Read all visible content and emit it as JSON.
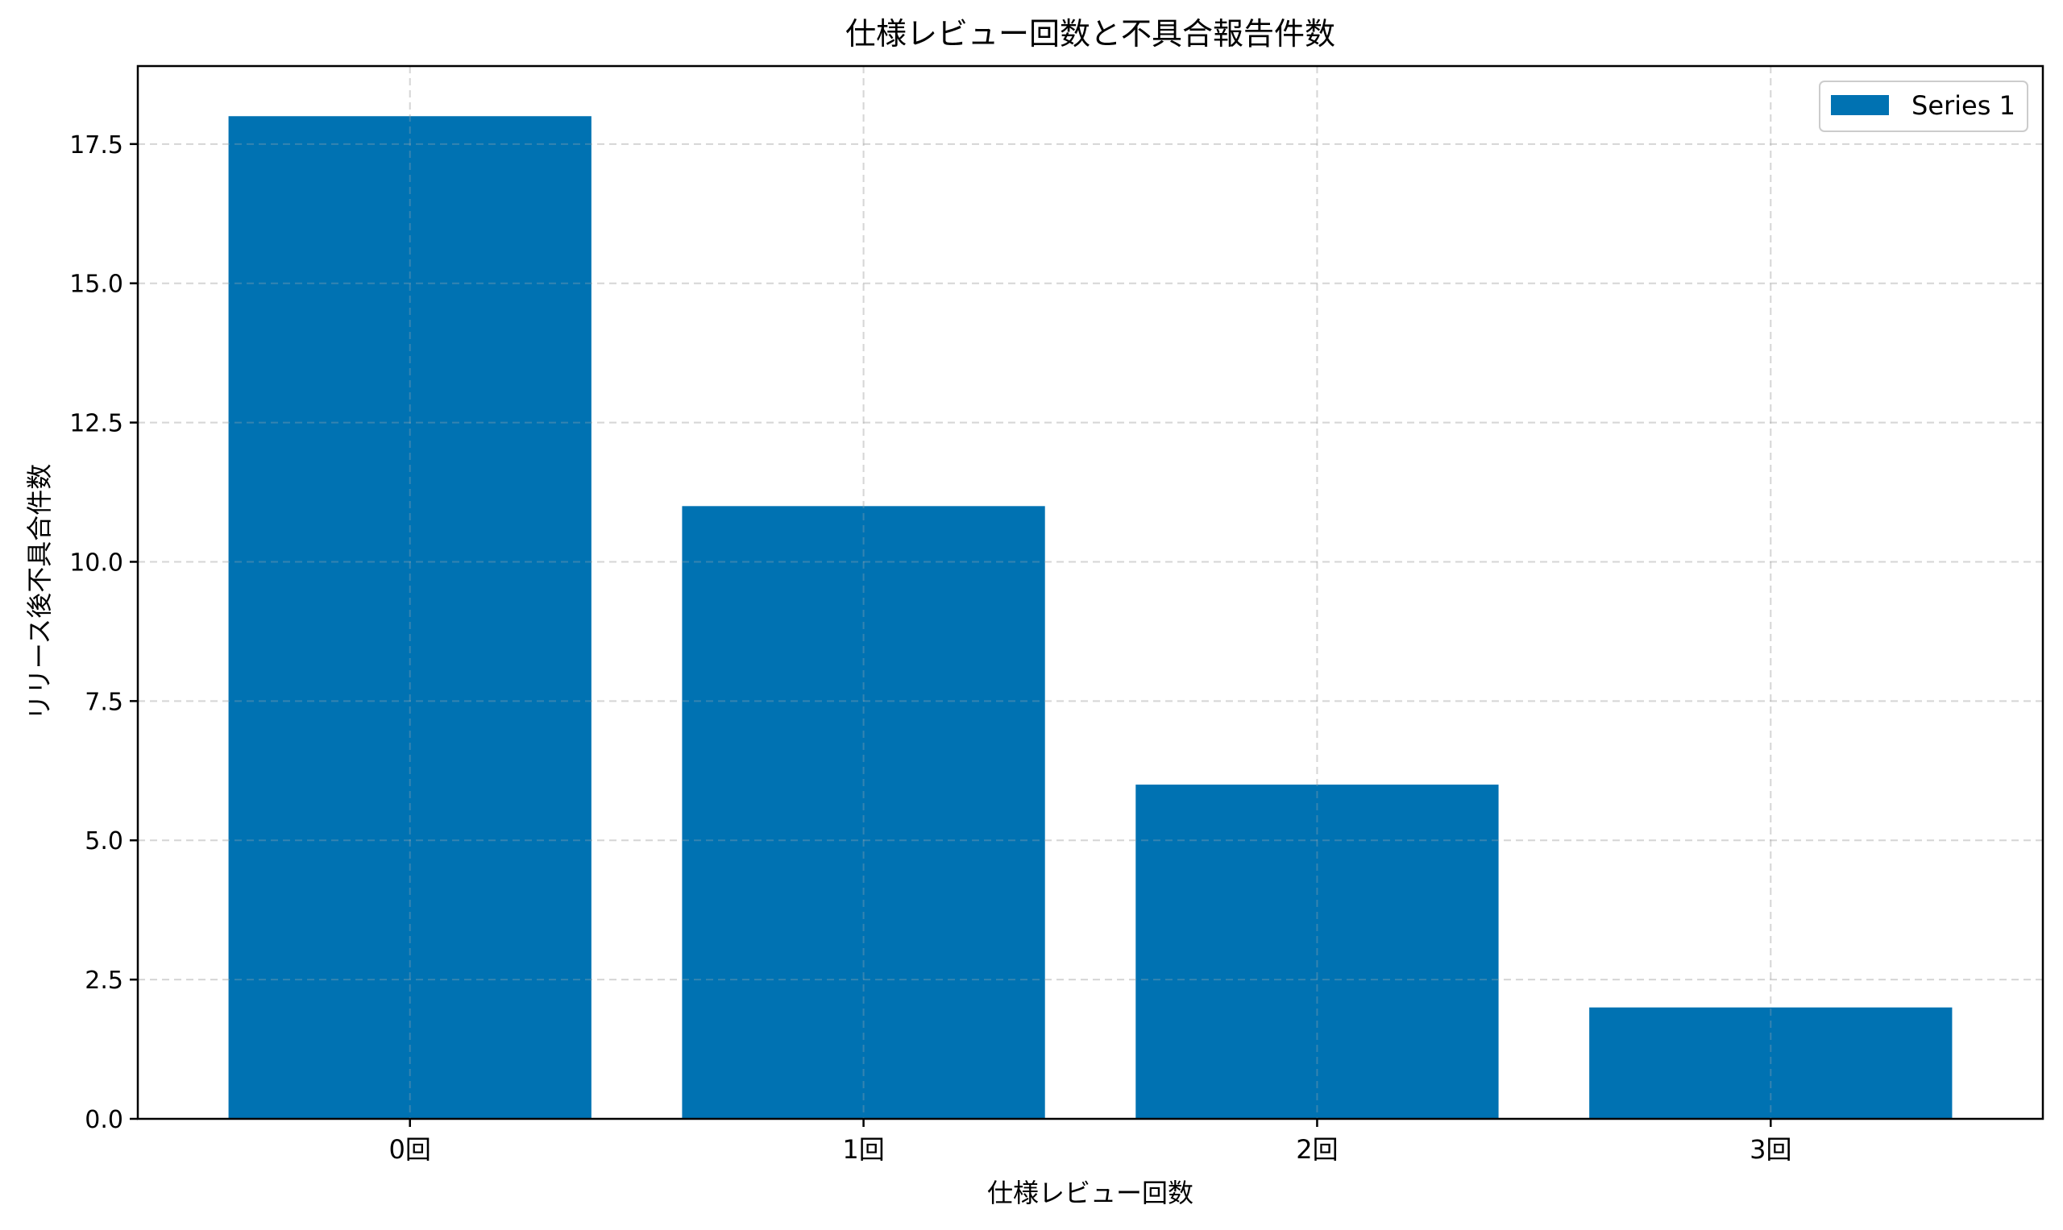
{
  "chart_data": {
    "type": "bar",
    "title": "仕様レビュー回数と不具合報告件数",
    "xlabel": "仕様レビュー回数",
    "ylabel": "リリース後不具合件数",
    "categories": [
      "0回",
      "1回",
      "2回",
      "3回"
    ],
    "series": [
      {
        "name": "Series 1",
        "values": [
          18,
          11,
          6,
          2
        ],
        "color": "#0072B2"
      }
    ],
    "ylim": [
      0,
      18.9
    ],
    "yticks": [
      "0.0",
      "2.5",
      "5.0",
      "7.5",
      "10.0",
      "12.5",
      "15.0",
      "17.5"
    ],
    "grid": true,
    "legend": "top-right"
  }
}
